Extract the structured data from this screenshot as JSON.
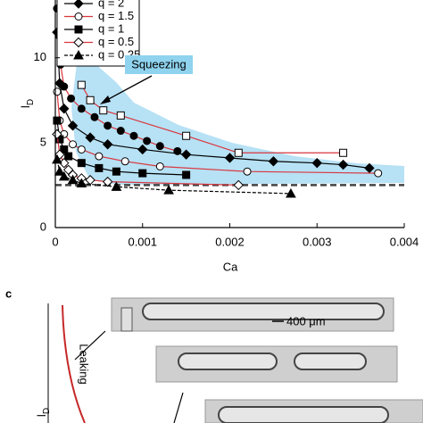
{
  "chart_data": {
    "type": "line",
    "x_label": "Ca",
    "y_label": "l",
    "y_label_sub": "D",
    "xlim": [
      0,
      0.004
    ],
    "xticks": [
      0,
      0.001,
      0.002,
      0.003,
      0.004
    ],
    "ylim": [
      0,
      13.4
    ],
    "yticks": [
      0,
      5,
      10
    ],
    "reference_line": 2.5,
    "annotation": "Squeezing",
    "series": [
      {
        "color": "#d9363e",
        "marker": "circle",
        "x": [
          2e-05,
          4e-05,
          6e-05,
          0.0001,
          0.00018,
          0.0003,
          0.00045,
          0.0006,
          0.00075,
          0.0009,
          0.00105,
          0.0012,
          0.0014
        ],
        "values": [
          12.9,
          11.3,
          9.6,
          8.3,
          7.6,
          7.0,
          6.5,
          6.0,
          5.7,
          5.4,
          5.1,
          4.8,
          4.5
        ]
      },
      {
        "color": "#d9363e",
        "marker": "square-open",
        "x": [
          0.0003,
          0.0004,
          0.00055,
          0.00075,
          0.0015,
          0.0021,
          0.0033
        ],
        "values": [
          8.4,
          7.5,
          6.9,
          6.6,
          5.4,
          4.4,
          4.4
        ]
      },
      {
        "name": "q = 2",
        "color": "#000000",
        "marker": "diamond",
        "x": [
          2e-05,
          5e-05,
          0.0001,
          0.0002,
          0.0004,
          0.0006,
          0.001,
          0.0015,
          0.002,
          0.0025,
          0.003,
          0.0033,
          0.0036
        ],
        "values": [
          11.5,
          8.5,
          7.0,
          6.0,
          5.3,
          4.9,
          4.6,
          4.3,
          4.1,
          3.9,
          3.8,
          3.7,
          3.5
        ]
      },
      {
        "name": "q = 1.5",
        "color": "#d9363e",
        "marker": "circle-open",
        "x": [
          2e-05,
          5e-05,
          0.0001,
          0.0002,
          0.0003,
          0.0005,
          0.0008,
          0.0012,
          0.0022,
          0.0037
        ],
        "values": [
          8,
          6.3,
          5.5,
          4.9,
          4.6,
          4.2,
          3.9,
          3.6,
          3.3,
          3.2
        ]
      },
      {
        "name": "q = 1",
        "color": "#000000",
        "marker": "square",
        "x": [
          2e-05,
          5e-05,
          0.0001,
          0.00015,
          0.0003,
          0.0005,
          0.0007,
          0.001,
          0.0015
        ],
        "values": [
          6.3,
          5.2,
          4.6,
          4.2,
          3.8,
          3.5,
          3.3,
          3.2,
          3.1
        ]
      },
      {
        "name": "q = 0.5",
        "color": "#d9363e",
        "marker": "diamond-open",
        "x": [
          2e-05,
          5e-05,
          0.0001,
          0.00015,
          0.0002,
          0.0003,
          0.0004,
          0.0006,
          0.0021
        ],
        "values": [
          5.5,
          4.3,
          3.8,
          3.4,
          3.1,
          2.9,
          2.8,
          2.7,
          2.5
        ]
      },
      {
        "name": "q = 0.25",
        "color": "#000000",
        "marker": "triangle",
        "dashed": true,
        "x": [
          2e-05,
          5e-05,
          0.0001,
          0.0002,
          0.0003,
          0.0007,
          0.0013,
          0.0027
        ],
        "values": [
          4.0,
          3.3,
          3.0,
          2.8,
          2.6,
          2.4,
          2.2,
          2.0
        ]
      }
    ]
  },
  "panel_c": {
    "label": "c",
    "annotation": "Leaking",
    "scale_bar": "400 μm",
    "y_label": "l",
    "y_label_sub": "D"
  }
}
